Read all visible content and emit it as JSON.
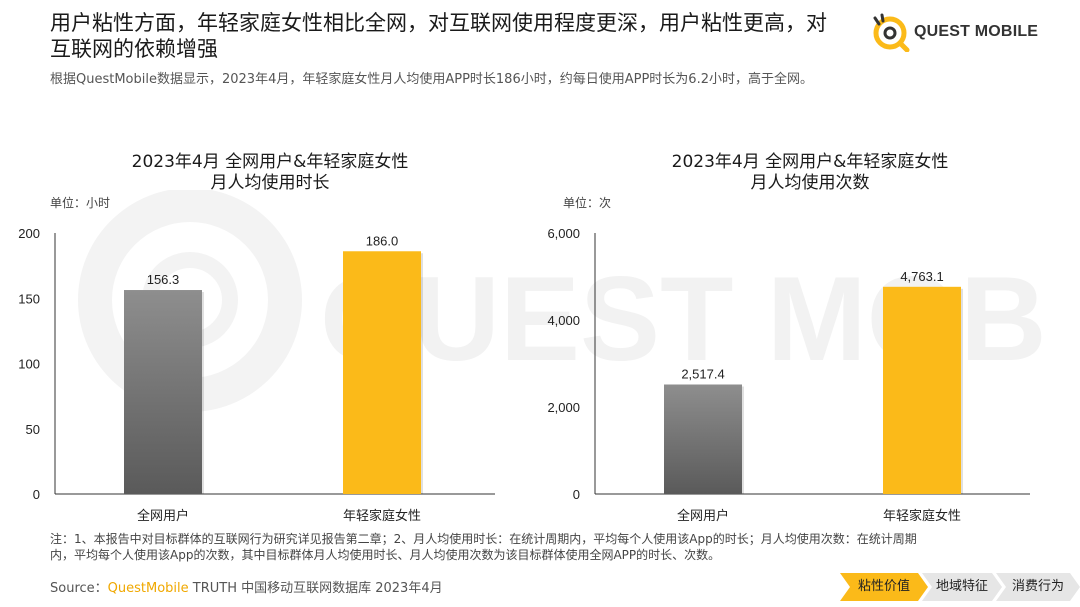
{
  "header": {
    "headline": "用户粘性方面，年轻家庭女性相比全网，对互联网使用程度更深，用户粘性更高，对互联网的依赖增强",
    "subline": "根据QuestMobile数据显示，2023年4月，年轻家庭女性月人均使用APP时长186小时，约每日使用APP时长为6.2小时，高于全网。"
  },
  "logo": {
    "text": "QUEST MOBILE",
    "watermark": "QUEST MOBILE"
  },
  "colors": {
    "accent": "#FBBA19",
    "gray_top": "#8e8e8e",
    "gray_bottom": "#5a5a5a",
    "axis": "#333333"
  },
  "chart_data": [
    {
      "type": "bar",
      "title_line1": "2023年4月 全网用户&年轻家庭女性",
      "title_line2": "月人均使用时长",
      "unit": "单位：小时",
      "categories": [
        "全网用户",
        "年轻家庭女性"
      ],
      "values": [
        156.3,
        186.0
      ],
      "value_labels": [
        "156.3",
        "186.0"
      ],
      "ylim": [
        0,
        200
      ],
      "ticks": [
        0,
        50,
        100,
        150,
        200
      ],
      "tick_labels": [
        "0",
        "50",
        "100",
        "150",
        "200"
      ],
      "grid": false
    },
    {
      "type": "bar",
      "title_line1": "2023年4月 全网用户&年轻家庭女性",
      "title_line2": "月人均使用次数",
      "unit": "单位：次",
      "categories": [
        "全网用户",
        "年轻家庭女性"
      ],
      "values": [
        2517.4,
        4763.1
      ],
      "value_labels": [
        "2,517.4",
        "4,763.1"
      ],
      "ylim": [
        0,
        6000
      ],
      "ticks": [
        0,
        2000,
        4000,
        6000
      ],
      "tick_labels": [
        "0",
        "2,000",
        "4,000",
        "6,000"
      ],
      "grid": false
    }
  ],
  "notes": {
    "line1": "注：1、本报告中对目标群体的互联网行为研究详见报告第二章；2、月人均使用时长：在统计周期内，平均每个人使用该App的时长；月人均使用次数：在统计周期",
    "line2": "内，平均每个人使用该App的次数，其中目标群体月人均使用时长、月人均使用次数为该目标群体使用全网APP的时长、次数。"
  },
  "source": {
    "prefix": "Source：",
    "brand": "QuestMobile",
    "rest": " TRUTH 中国移动互联网数据库 2023年4月"
  },
  "nav": [
    {
      "label": "粘性价值",
      "active": true
    },
    {
      "label": "地域特征",
      "active": false
    },
    {
      "label": "消费行为",
      "active": false
    }
  ]
}
